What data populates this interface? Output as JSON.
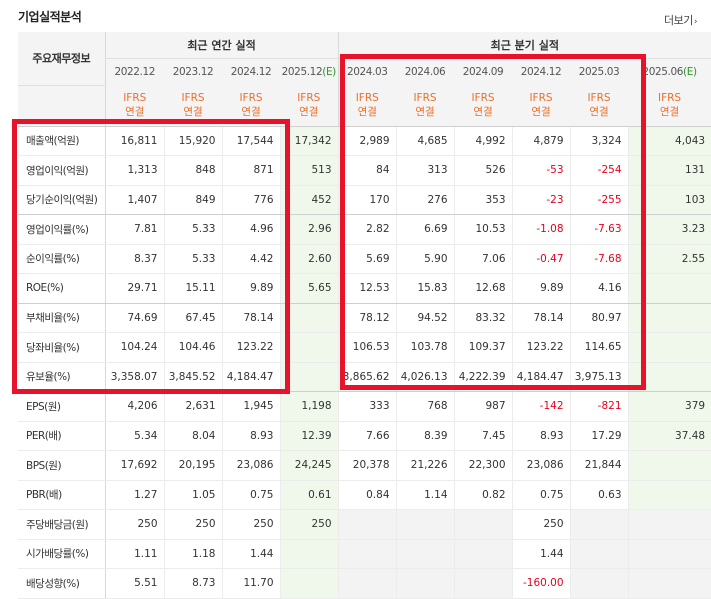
{
  "section": {
    "title": "기업실적분석",
    "more_label": "더보기",
    "more_icon": "chevron-right-icon"
  },
  "header": {
    "corner_label": "주요재무정보",
    "annual_group": "최근 연간 실적",
    "quarter_group": "최근 분기 실적",
    "periods": [
      "2022.12",
      "2023.12",
      "2024.12",
      "2025.12",
      "2024.03",
      "2024.06",
      "2024.09",
      "2024.12",
      "2025.03",
      "2025.06"
    ],
    "estimate_marker": "(E)",
    "ifrs": "IFRS",
    "consolidated": "연결"
  },
  "colors": {
    "highlight": "#e8122a",
    "negative": "#e8001c",
    "estimate_bg": "#f0f8ec",
    "ifrs": "#e8702a",
    "estimate_marker": "#2a9a2a"
  },
  "rows": [
    {
      "label": "매출액(억원)",
      "values": [
        "16,811",
        "15,920",
        "17,544",
        "17,342",
        "2,989",
        "4,685",
        "4,992",
        "4,879",
        "3,324",
        "4,043"
      ]
    },
    {
      "label": "영업이익(억원)",
      "values": [
        "1,313",
        "848",
        "871",
        "513",
        "84",
        "313",
        "526",
        "-53",
        "-254",
        "131"
      ]
    },
    {
      "label": "당기순이익(억원)",
      "values": [
        "1,407",
        "849",
        "776",
        "452",
        "170",
        "276",
        "353",
        "-23",
        "-255",
        "103"
      ]
    },
    {
      "label": "영업이익률(%)",
      "values": [
        "7.81",
        "5.33",
        "4.96",
        "2.96",
        "2.82",
        "6.69",
        "10.53",
        "-1.08",
        "-7.63",
        "3.23"
      ]
    },
    {
      "label": "순이익률(%)",
      "values": [
        "8.37",
        "5.33",
        "4.42",
        "2.60",
        "5.69",
        "5.90",
        "7.06",
        "-0.47",
        "-7.68",
        "2.55"
      ]
    },
    {
      "label": "ROE(%)",
      "values": [
        "29.71",
        "15.11",
        "9.89",
        "5.65",
        "12.53",
        "15.83",
        "12.68",
        "9.89",
        "4.16",
        ""
      ]
    },
    {
      "label": "부채비율(%)",
      "values": [
        "74.69",
        "67.45",
        "78.14",
        "",
        "78.12",
        "94.52",
        "83.32",
        "78.14",
        "80.97",
        ""
      ]
    },
    {
      "label": "당좌비율(%)",
      "values": [
        "104.24",
        "104.46",
        "123.22",
        "",
        "106.53",
        "103.78",
        "109.37",
        "123.22",
        "114.65",
        ""
      ]
    },
    {
      "label": "유보율(%)",
      "values": [
        "3,358.07",
        "3,845.52",
        "4,184.47",
        "",
        "3,865.62",
        "4,026.13",
        "4,222.39",
        "4,184.47",
        "3,975.13",
        ""
      ]
    },
    {
      "label": "EPS(원)",
      "values": [
        "4,206",
        "2,631",
        "1,945",
        "1,198",
        "333",
        "768",
        "987",
        "-142",
        "-821",
        "379"
      ]
    },
    {
      "label": "PER(배)",
      "values": [
        "5.34",
        "8.04",
        "8.93",
        "12.39",
        "7.66",
        "8.39",
        "7.45",
        "8.93",
        "17.29",
        "37.48"
      ]
    },
    {
      "label": "BPS(원)",
      "values": [
        "17,692",
        "20,195",
        "23,086",
        "24,245",
        "20,378",
        "21,226",
        "22,300",
        "23,086",
        "21,844",
        ""
      ]
    },
    {
      "label": "PBR(배)",
      "values": [
        "1.27",
        "1.05",
        "0.75",
        "0.61",
        "0.84",
        "1.14",
        "0.82",
        "0.75",
        "0.63",
        ""
      ]
    },
    {
      "label": "주당배당금(원)",
      "values": [
        "250",
        "250",
        "250",
        "250",
        "",
        "",
        "",
        "250",
        "",
        ""
      ]
    },
    {
      "label": "시가배당률(%)",
      "values": [
        "1.11",
        "1.18",
        "1.44",
        "",
        "",
        "",
        "",
        "1.44",
        "",
        ""
      ]
    },
    {
      "label": "배당성향(%)",
      "values": [
        "5.51",
        "8.73",
        "11.70",
        "",
        "",
        "",
        "",
        "-160.00",
        "",
        ""
      ]
    }
  ]
}
